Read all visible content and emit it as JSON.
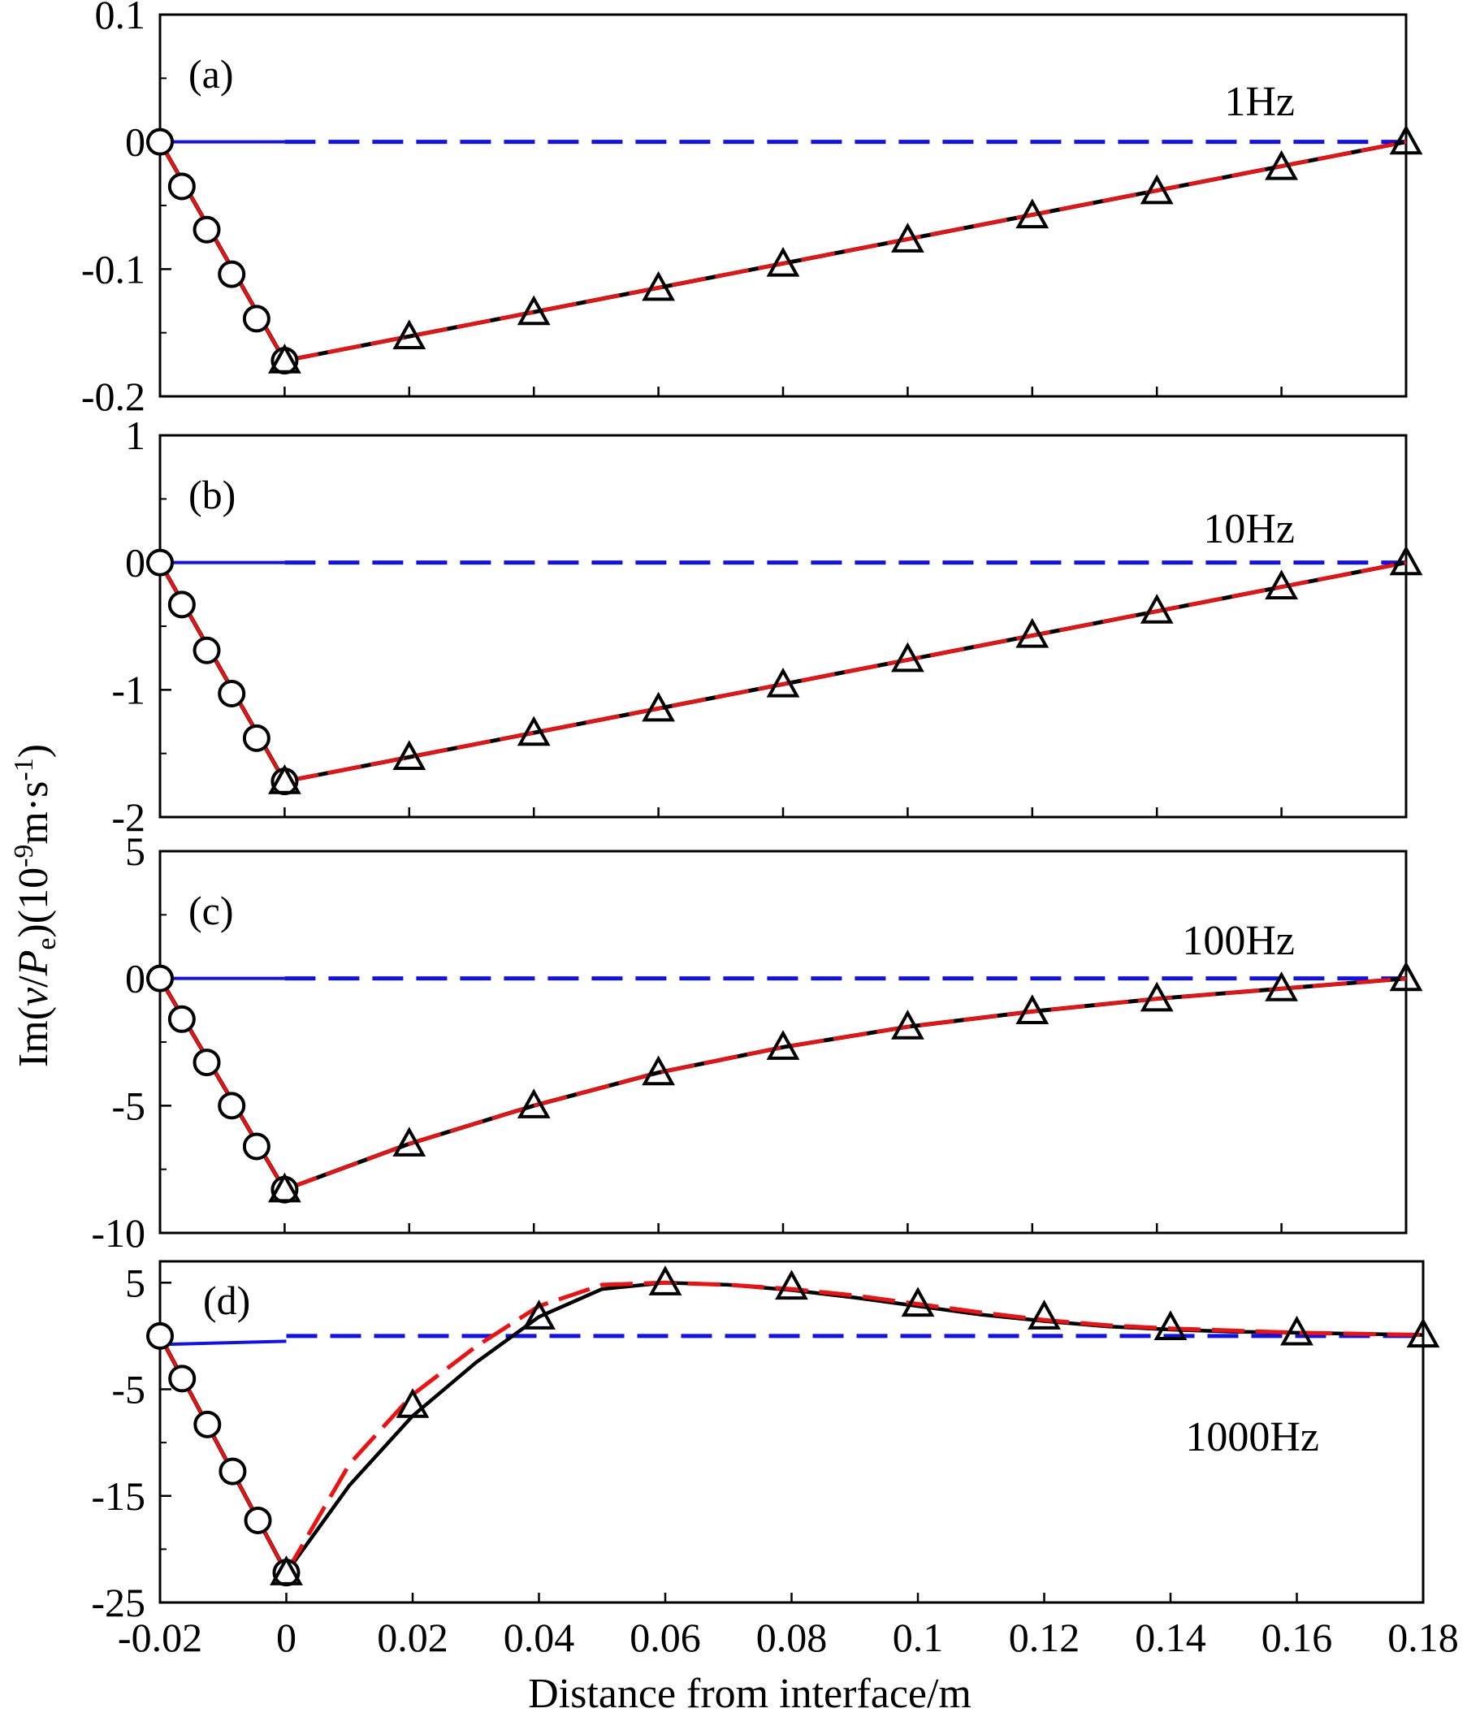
{
  "figure": {
    "xlabel": "Distance from interface/m",
    "ylabel": "Im(v/Pe)(10-9m·s-1)",
    "ylabel_parts": {
      "prefix": "Im(",
      "v": "v",
      "slash": "/",
      "P": "P",
      "e": "e",
      "mid": ")(10",
      "exp": "-9",
      "unit": "m·s",
      "unitexp": "-1",
      "close": ")"
    }
  },
  "colors": {
    "blue_dashed": "#1010ee",
    "red_dashed": "#ee1111",
    "black_solid": "#000000"
  },
  "chart_data": [
    {
      "type": "line",
      "panel_label": "(a)",
      "freq_label": "1Hz",
      "xlim": [
        -0.02,
        0.18
      ],
      "ylim": [
        -0.2,
        0.1
      ],
      "x_ticks": [
        -0.02,
        0,
        0.02,
        0.04,
        0.06,
        0.08,
        0.1,
        0.12,
        0.14,
        0.16,
        0.18
      ],
      "y_ticks": [
        0.1,
        0,
        -0.1,
        -0.2
      ],
      "y_tick_labels": [
        "0.1",
        "0",
        "-0.1",
        "-0.2"
      ],
      "zero_line": {
        "x_start": -0.02,
        "x_end": 0.18,
        "y": 0
      },
      "left_curve": {
        "x": [
          -0.02,
          0
        ],
        "y": [
          0,
          -0.172
        ]
      },
      "right_curve": {
        "x": [
          0,
          0.18
        ],
        "y": [
          -0.172,
          0
        ]
      },
      "circles": {
        "x": [
          -0.02,
          -0.0165,
          -0.0125,
          -0.0085,
          -0.0045,
          0
        ],
        "y": [
          0,
          -0.035,
          -0.069,
          -0.104,
          -0.139,
          -0.172
        ]
      },
      "triangles": {
        "x": [
          0,
          0.02,
          0.04,
          0.06,
          0.08,
          0.1,
          0.12,
          0.14,
          0.16,
          0.18
        ],
        "y": [
          -0.172,
          -0.153,
          -0.134,
          -0.115,
          -0.096,
          -0.077,
          -0.058,
          -0.039,
          -0.02,
          0
        ]
      }
    },
    {
      "type": "line",
      "panel_label": "(b)",
      "freq_label": "10Hz",
      "xlim": [
        -0.02,
        0.18
      ],
      "ylim": [
        -2,
        1
      ],
      "x_ticks": [
        -0.02,
        0,
        0.02,
        0.04,
        0.06,
        0.08,
        0.1,
        0.12,
        0.14,
        0.16,
        0.18
      ],
      "y_ticks": [
        1,
        0,
        -1,
        -2
      ],
      "y_tick_labels": [
        "1",
        "0",
        "-1",
        "-2"
      ],
      "zero_line": {
        "x_start": -0.02,
        "x_end": 0.18,
        "y": 0
      },
      "left_curve": {
        "x": [
          -0.02,
          0
        ],
        "y": [
          0,
          -1.72
        ]
      },
      "right_curve": {
        "x": [
          0,
          0.18
        ],
        "y": [
          -1.72,
          0
        ]
      },
      "circles": {
        "x": [
          -0.02,
          -0.0165,
          -0.0125,
          -0.0085,
          -0.0045,
          0
        ],
        "y": [
          0,
          -0.33,
          -0.69,
          -1.03,
          -1.38,
          -1.72
        ]
      },
      "triangles": {
        "x": [
          0,
          0.02,
          0.04,
          0.06,
          0.08,
          0.1,
          0.12,
          0.14,
          0.16,
          0.18
        ],
        "y": [
          -1.72,
          -1.53,
          -1.34,
          -1.15,
          -0.96,
          -0.76,
          -0.57,
          -0.38,
          -0.19,
          0
        ]
      }
    },
    {
      "type": "line",
      "panel_label": "(c)",
      "freq_label": "100Hz",
      "xlim": [
        -0.02,
        0.18
      ],
      "ylim": [
        -10,
        5
      ],
      "x_ticks": [
        -0.02,
        0,
        0.02,
        0.04,
        0.06,
        0.08,
        0.1,
        0.12,
        0.14,
        0.16,
        0.18
      ],
      "y_ticks": [
        5,
        0,
        -5,
        -10
      ],
      "y_tick_labels": [
        "5",
        "0",
        "-5",
        "-10"
      ],
      "zero_line": {
        "x_start": -0.02,
        "x_end": 0.18,
        "y": 0
      },
      "left_curve": {
        "x": [
          -0.02,
          0
        ],
        "y": [
          0,
          -8.3
        ]
      },
      "right_curve": {
        "x": [
          0,
          0.02,
          0.04,
          0.06,
          0.08,
          0.1,
          0.12,
          0.14,
          0.16,
          0.18
        ],
        "y": [
          -8.3,
          -6.5,
          -5.0,
          -3.7,
          -2.7,
          -1.9,
          -1.3,
          -0.8,
          -0.4,
          0
        ]
      },
      "circles": {
        "x": [
          -0.02,
          -0.0165,
          -0.0125,
          -0.0085,
          -0.0045,
          0
        ],
        "y": [
          0,
          -1.6,
          -3.3,
          -5.0,
          -6.6,
          -8.3
        ]
      },
      "triangles": {
        "x": [
          0,
          0.02,
          0.04,
          0.06,
          0.08,
          0.1,
          0.12,
          0.14,
          0.16,
          0.18
        ],
        "y": [
          -8.3,
          -6.5,
          -5.0,
          -3.7,
          -2.7,
          -1.9,
          -1.3,
          -0.8,
          -0.4,
          0
        ]
      }
    },
    {
      "type": "line",
      "panel_label": "(d)",
      "freq_label": "1000Hz",
      "xlim": [
        -0.02,
        0.18
      ],
      "ylim": [
        -25,
        7
      ],
      "x_ticks": [
        -0.02,
        0,
        0.02,
        0.04,
        0.06,
        0.08,
        0.1,
        0.12,
        0.14,
        0.16,
        0.18
      ],
      "x_tick_labels": [
        "-0.02",
        "0",
        "0.02",
        "0.04",
        "0.06",
        "0.08",
        "0.1",
        "0.12",
        "0.14",
        "0.16",
        "0.18"
      ],
      "y_ticks": [
        5,
        -5,
        -15,
        -25
      ],
      "y_tick_labels": [
        "5",
        "-5",
        "-15",
        "-25"
      ],
      "zero_line": {
        "x_start": 0,
        "x_end": 0.18,
        "y": 0
      },
      "zero_line_left": {
        "x": [
          -0.02,
          0
        ],
        "y": [
          -0.8,
          -0.5
        ]
      },
      "left_curve": {
        "x": [
          -0.02,
          0
        ],
        "y": [
          0,
          -22.2
        ]
      },
      "right_curve_solid": {
        "x": [
          0,
          0.01,
          0.02,
          0.03,
          0.04,
          0.05,
          0.06,
          0.07,
          0.08,
          0.09,
          0.1,
          0.11,
          0.12,
          0.13,
          0.14,
          0.15,
          0.16,
          0.17,
          0.18
        ],
        "y": [
          -22.2,
          -14,
          -7.5,
          -2.5,
          1.8,
          4.4,
          5.0,
          4.8,
          4.3,
          3.6,
          2.8,
          2.0,
          1.4,
          0.9,
          0.6,
          0.4,
          0.3,
          0.2,
          0.1
        ]
      },
      "right_curve_dashed": {
        "x": [
          0,
          0.01,
          0.02,
          0.03,
          0.04,
          0.05,
          0.06,
          0.07,
          0.08,
          0.09,
          0.1,
          0.11,
          0.12,
          0.13,
          0.14,
          0.15,
          0.16,
          0.17,
          0.18
        ],
        "y": [
          -22.2,
          -12,
          -5.5,
          -1.0,
          2.8,
          4.8,
          5.0,
          4.8,
          4.4,
          3.8,
          3.0,
          2.2,
          1.5,
          1.0,
          0.7,
          0.5,
          0.3,
          0.2,
          0.1
        ]
      },
      "circles": {
        "x": [
          -0.02,
          -0.0165,
          -0.0125,
          -0.0085,
          -0.0045,
          0
        ],
        "y": [
          0,
          -4,
          -8.3,
          -12.7,
          -17.3,
          -22.2
        ]
      },
      "triangles": {
        "x": [
          0,
          0.02,
          0.04,
          0.06,
          0.08,
          0.1,
          0.12,
          0.14,
          0.16,
          0.18
        ],
        "y": [
          -22.2,
          -6.5,
          1.8,
          5.0,
          4.6,
          3.0,
          1.8,
          0.8,
          0.3,
          0.1
        ]
      }
    }
  ]
}
